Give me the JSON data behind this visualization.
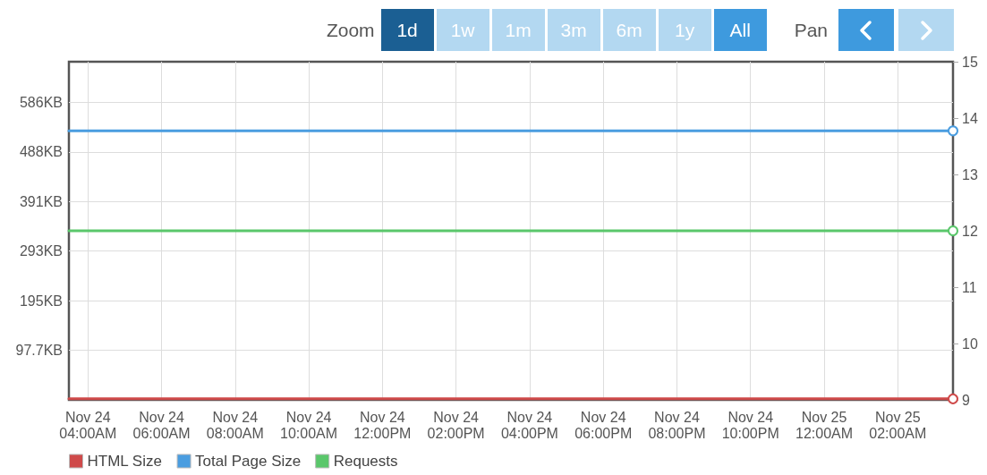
{
  "chart_data": {
    "type": "line",
    "annotations": [
      "Zoom",
      "1d",
      "1w",
      "1m",
      "3m",
      "6m",
      "1y",
      "All",
      "Pan"
    ],
    "x": [
      "--11-24T03:29",
      "--11-25T03:30"
    ],
    "xlim": [
      "--11-24T03:29",
      "--11-25T03:30"
    ],
    "xticks": [
      {
        "value": "--11-24T04:00",
        "label": "Nov 24\n04:00AM"
      },
      {
        "value": "--11-24T06:00",
        "label": "Nov 24\n06:00AM"
      },
      {
        "value": "--11-24T08:00",
        "label": "Nov 24\n08:00AM"
      },
      {
        "value": "--11-24T10:00",
        "label": "Nov 24\n10:00AM"
      },
      {
        "value": "--11-24T12:00",
        "label": "Nov 24\n12:00PM"
      },
      {
        "value": "--11-24T14:00",
        "label": "Nov 24\n02:00PM"
      },
      {
        "value": "--11-24T16:00",
        "label": "Nov 24\n04:00PM"
      },
      {
        "value": "--11-24T18:00",
        "label": "Nov 24\n06:00PM"
      },
      {
        "value": "--11-24T20:00",
        "label": "Nov 24\n08:00PM"
      },
      {
        "value": "--11-24T22:00",
        "label": "Nov 24\n10:00PM"
      },
      {
        "value": "--11-25T00:00",
        "label": "Nov 25\n12:00AM"
      },
      {
        "value": "--11-25T02:00",
        "label": "Nov 25\n02:00AM"
      }
    ],
    "series": [
      {
        "name": "HTML Size",
        "color": "#cf4a4a",
        "values": [
          2,
          2
        ]
      },
      {
        "name": "Total Page Size",
        "color": "#4a9de0",
        "values": [
          530,
          530
        ]
      },
      {
        "name": "Requests",
        "color": "#5ac76b",
        "values": [
          12,
          12
        ],
        "axis": "y2"
      }
    ],
    "ylim": [
      0,
      666
    ],
    "yticks": [
      {
        "value": 97.66,
        "label": "97.7KB"
      },
      {
        "value": 195.31,
        "label": "195KB"
      },
      {
        "value": 292.97,
        "label": "293KB"
      },
      {
        "value": 390.63,
        "label": "391KB"
      },
      {
        "value": 488.28,
        "label": "488KB"
      },
      {
        "value": 585.94,
        "label": "586KB"
      }
    ],
    "y2lim": [
      9,
      15
    ],
    "y2ticks": [
      9,
      10,
      11,
      12,
      13,
      14,
      15
    ],
    "grid": true,
    "legend": "bottom left",
    "marker": "circle",
    "line_style": "solid"
  }
}
